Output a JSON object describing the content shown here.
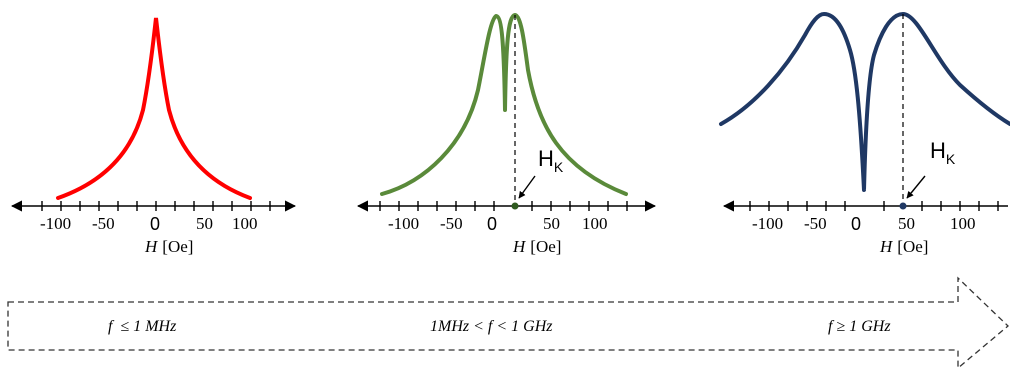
{
  "panels": [
    {
      "curve_color": "#ff0000",
      "tick_labels": [
        "-100",
        "-50",
        "0",
        "50",
        "100"
      ],
      "axis_title": {
        "var": "H",
        "unit": "[Oe]"
      },
      "peak_field": null,
      "marker_label": null
    },
    {
      "curve_color": "#5a8a3a",
      "tick_labels": [
        "-100",
        "-50",
        "0",
        "50",
        "100"
      ],
      "axis_title": {
        "var": "H",
        "unit": "[Oe]"
      },
      "peak_field": 12,
      "marker_label": {
        "main": "H",
        "sub": "K"
      }
    },
    {
      "curve_color": "#1f3864",
      "tick_labels": [
        "-100",
        "-50",
        "0",
        "50",
        "100"
      ],
      "axis_title": {
        "var": "H",
        "unit": "[Oe]"
      },
      "peak_field": 45,
      "marker_label": {
        "main": "H",
        "sub": "K"
      }
    }
  ],
  "frequency_arrow": {
    "labels": [
      "f  ≤ 1 MHz",
      "1MHz < f < 1 GHz",
      "f ≥ 1 GHz"
    ]
  }
}
